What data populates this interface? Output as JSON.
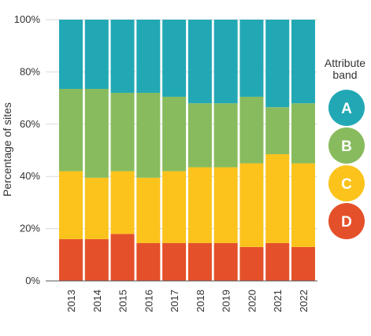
{
  "chart_data": {
    "type": "bar",
    "stacked": true,
    "ylabel": "Percentage of sites",
    "xlabel": "",
    "ylim": [
      0,
      100
    ],
    "y_ticks": [
      "0%",
      "20%",
      "40%",
      "60%",
      "80%",
      "100%"
    ],
    "grid": "horizontal",
    "legend_placement": "right",
    "legend_title": "Attribute band",
    "categories": [
      "2013",
      "2014",
      "2015",
      "2016",
      "2017",
      "2018",
      "2019",
      "2020",
      "2021",
      "2022"
    ],
    "series": [
      {
        "name": "D",
        "color": "#e4502a",
        "values": [
          16,
          16,
          18,
          14.5,
          14.5,
          14.5,
          14.5,
          13,
          14.5,
          13
        ]
      },
      {
        "name": "C",
        "color": "#fbc31b",
        "values": [
          26,
          23.5,
          24,
          25,
          27.5,
          29,
          29,
          32,
          34,
          32
        ]
      },
      {
        "name": "B",
        "color": "#88bb5e",
        "values": [
          31.5,
          34,
          30,
          32.5,
          28.5,
          24.5,
          24.5,
          25.5,
          18,
          23
        ]
      },
      {
        "name": "A",
        "color": "#22a8b5",
        "values": [
          26.5,
          26.5,
          28,
          28,
          29.5,
          32,
          32,
          29.5,
          33.5,
          32
        ]
      }
    ]
  }
}
